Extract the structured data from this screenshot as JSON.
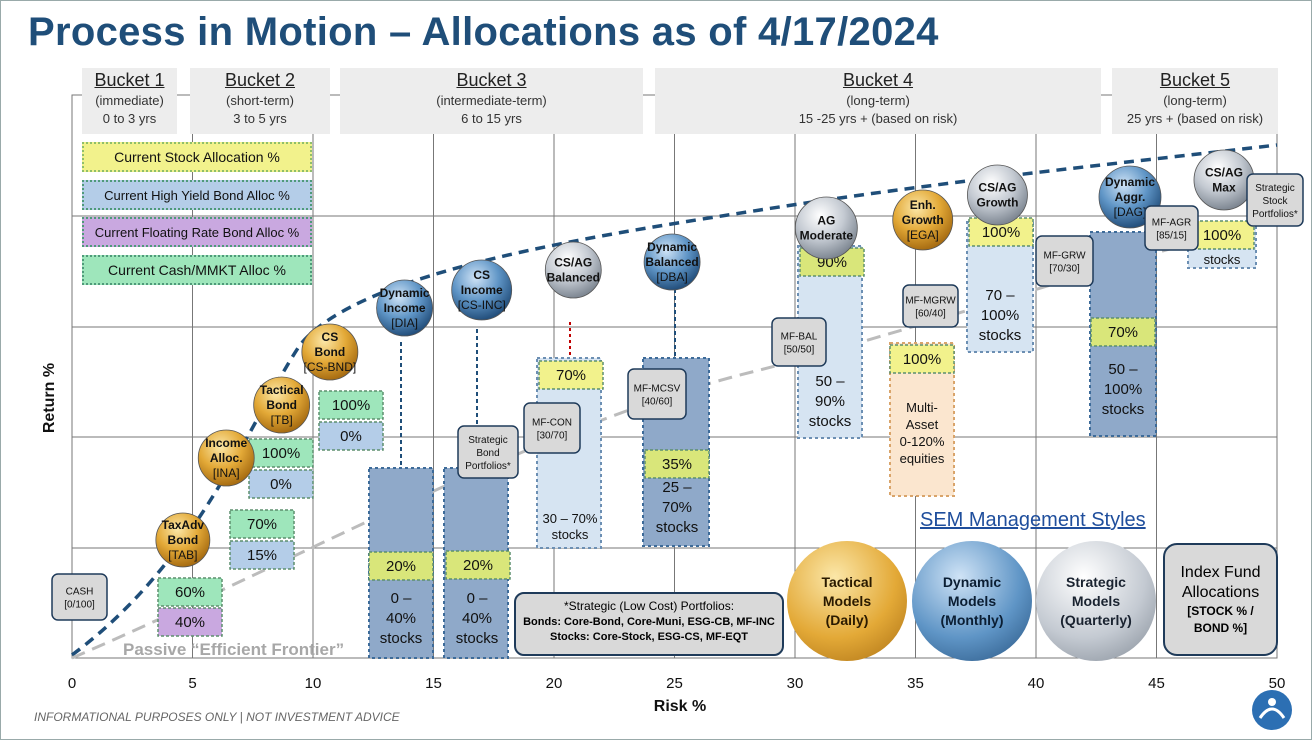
{
  "title": "Process in Motion – Allocations as of 4/17/2024",
  "footer": "INFORMATIONAL PURPOSES ONLY | NOT INVESTMENT ADVICE",
  "buckets": [
    {
      "name": "Bucket 1",
      "sub": "(immediate)",
      "range": "0 to 3 yrs"
    },
    {
      "name": "Bucket 2",
      "sub": "(short-term)",
      "range": "3 to 5 yrs"
    },
    {
      "name": "Bucket 3",
      "sub": "(intermediate-term)",
      "range": "6 to 15 yrs"
    },
    {
      "name": "Bucket 4",
      "sub": "(long-term)",
      "range": "15 -25 yrs + (based on risk)"
    },
    {
      "name": "Bucket 5",
      "sub": "(long-term)",
      "range": "25 yrs + (based on risk)"
    }
  ],
  "legend": [
    {
      "label": "Current Stock Allocation %",
      "color": "#f2f28c"
    },
    {
      "label": "Current High Yield Bond Alloc %",
      "color": "#b4cde8"
    },
    {
      "label": "Current Floating Rate Bond Alloc %",
      "color": "#c9a8e0"
    },
    {
      "label": "Current Cash/MMKT Alloc %",
      "color": "#9ee6bb"
    }
  ],
  "management": {
    "title": "SEM Management Styles",
    "tactical": [
      "Tactical",
      "Models",
      "(Daily)"
    ],
    "dynamic": [
      "Dynamic",
      "Models",
      "(Monthly)"
    ],
    "strategic": [
      "Strategic",
      "Models",
      "(Quarterly)"
    ],
    "index": [
      "Index Fund",
      "Allocations",
      "[STOCK % /",
      "BOND %]"
    ]
  },
  "strategic_note": {
    "title": "*Strategic (Low Cost) Portfolios:",
    "bonds": "Bonds: Core-Bond, Core-Muni, ESG-CB, MF-INC",
    "stocks": "Stocks: Core-Stock, ESG-CS, MF-EQT"
  },
  "chart_data": {
    "type": "scatter",
    "title": "Process in Motion – Allocations as of 4/17/2024",
    "xlabel": "Risk %",
    "ylabel": "Return %",
    "xlim": [
      0,
      50
    ],
    "x_ticks": [
      "0",
      "5",
      "10",
      "15",
      "20",
      "25",
      "30",
      "35",
      "40",
      "45",
      "50"
    ],
    "passive_frontier_label": "Passive “Efficient Frontier”",
    "circles": [
      {
        "lines": [
          "TaxAdv",
          "Bond",
          "[TAB]"
        ],
        "style": "gold",
        "risk": 4.6
      },
      {
        "lines": [
          "Income",
          "Alloc.",
          "[INA]"
        ],
        "style": "gold",
        "risk": 6.4
      },
      {
        "lines": [
          "Tactical",
          "Bond",
          "[TB]"
        ],
        "style": "gold",
        "risk": 8.7
      },
      {
        "lines": [
          "CS",
          "Bond",
          "[CS-BND]"
        ],
        "style": "gold",
        "risk": 10.7
      },
      {
        "lines": [
          "Dynamic",
          "Income",
          "[DIA]"
        ],
        "style": "blue",
        "risk": 13.8
      },
      {
        "lines": [
          "CS",
          "Income",
          "[CS-INC]"
        ],
        "style": "blue",
        "risk": 17.0
      },
      {
        "lines": [
          "CS/AG",
          "Balanced"
        ],
        "style": "silver",
        "risk": 20.8
      },
      {
        "lines": [
          "Dynamic",
          "Balanced",
          "[DBA]"
        ],
        "style": "blue",
        "risk": 24.9
      },
      {
        "lines": [
          "AG",
          "Moderate"
        ],
        "style": "silver",
        "risk": 31.3
      },
      {
        "lines": [
          "Enh.",
          "Growth",
          "[EGA]"
        ],
        "style": "gold",
        "risk": 35.3
      },
      {
        "lines": [
          "CS/AG",
          "Growth"
        ],
        "style": "silver",
        "risk": 38.4
      },
      {
        "lines": [
          "Dynamic",
          "Aggr.",
          "[DAG]"
        ],
        "style": "blue",
        "risk": 43.9
      },
      {
        "lines": [
          "CS/AG",
          "Max"
        ],
        "style": "silver",
        "risk": 47.8
      }
    ],
    "small_boxes": [
      {
        "lines": [
          "CASH",
          "[0/100]"
        ]
      },
      {
        "lines": [
          "Strategic",
          "Bond",
          "Portfolios*"
        ]
      },
      {
        "lines": [
          "MF-CON",
          "[30/70]"
        ]
      },
      {
        "lines": [
          "MF-MCSV",
          "[40/60]"
        ]
      },
      {
        "lines": [
          "MF-BAL",
          "[50/50]"
        ]
      },
      {
        "lines": [
          "MF-MGRW",
          "[60/40]"
        ]
      },
      {
        "lines": [
          "MF-GRW",
          "[70/30]"
        ]
      },
      {
        "lines": [
          "MF-AGR",
          "[85/15]"
        ]
      },
      {
        "lines": [
          "Strategic",
          "Stock",
          "Portfolios*"
        ]
      }
    ],
    "allocations": [
      {
        "fund": "TAB",
        "cash": "60%",
        "floating_rate": "40%"
      },
      {
        "fund": "INA",
        "cash": "70%",
        "high_yield": "15%"
      },
      {
        "fund": "TB",
        "cash": "100%",
        "high_yield": "0%"
      },
      {
        "fund": "CS-BND",
        "cash": "100%",
        "high_yield": "0%"
      },
      {
        "fund": "DIA",
        "stock": "20%",
        "range_lines": [
          "0 –",
          "40%",
          "stocks"
        ]
      },
      {
        "fund": "CS-INC",
        "stock": "20%",
        "range_lines": [
          "0 –",
          "40%",
          "stocks"
        ]
      },
      {
        "fund": "CS/AG Balanced",
        "stock": "70%",
        "range_lines": [
          "30 – 70%",
          "stocks"
        ]
      },
      {
        "fund": "DBA",
        "stock": "35%",
        "range_lines": [
          "25 –",
          "70%",
          "stocks"
        ]
      },
      {
        "fund": "AG Moderate",
        "stock": "90%",
        "range_lines": [
          "50 –",
          "90%",
          "stocks"
        ]
      },
      {
        "fund": "EGA",
        "stock": "100%",
        "range_lines": [
          "Multi-",
          "Asset",
          "0-120%",
          "equities"
        ]
      },
      {
        "fund": "CS/AG Growth",
        "stock": "100%",
        "range_lines": [
          "70 –",
          "100%",
          "stocks"
        ]
      },
      {
        "fund": "DAG",
        "stock": "70%",
        "range_lines": [
          "50 –",
          "100%",
          "stocks"
        ]
      },
      {
        "fund": "CS/AG Max",
        "stock": "100%",
        "range_lines": [
          "stocks"
        ]
      }
    ]
  }
}
